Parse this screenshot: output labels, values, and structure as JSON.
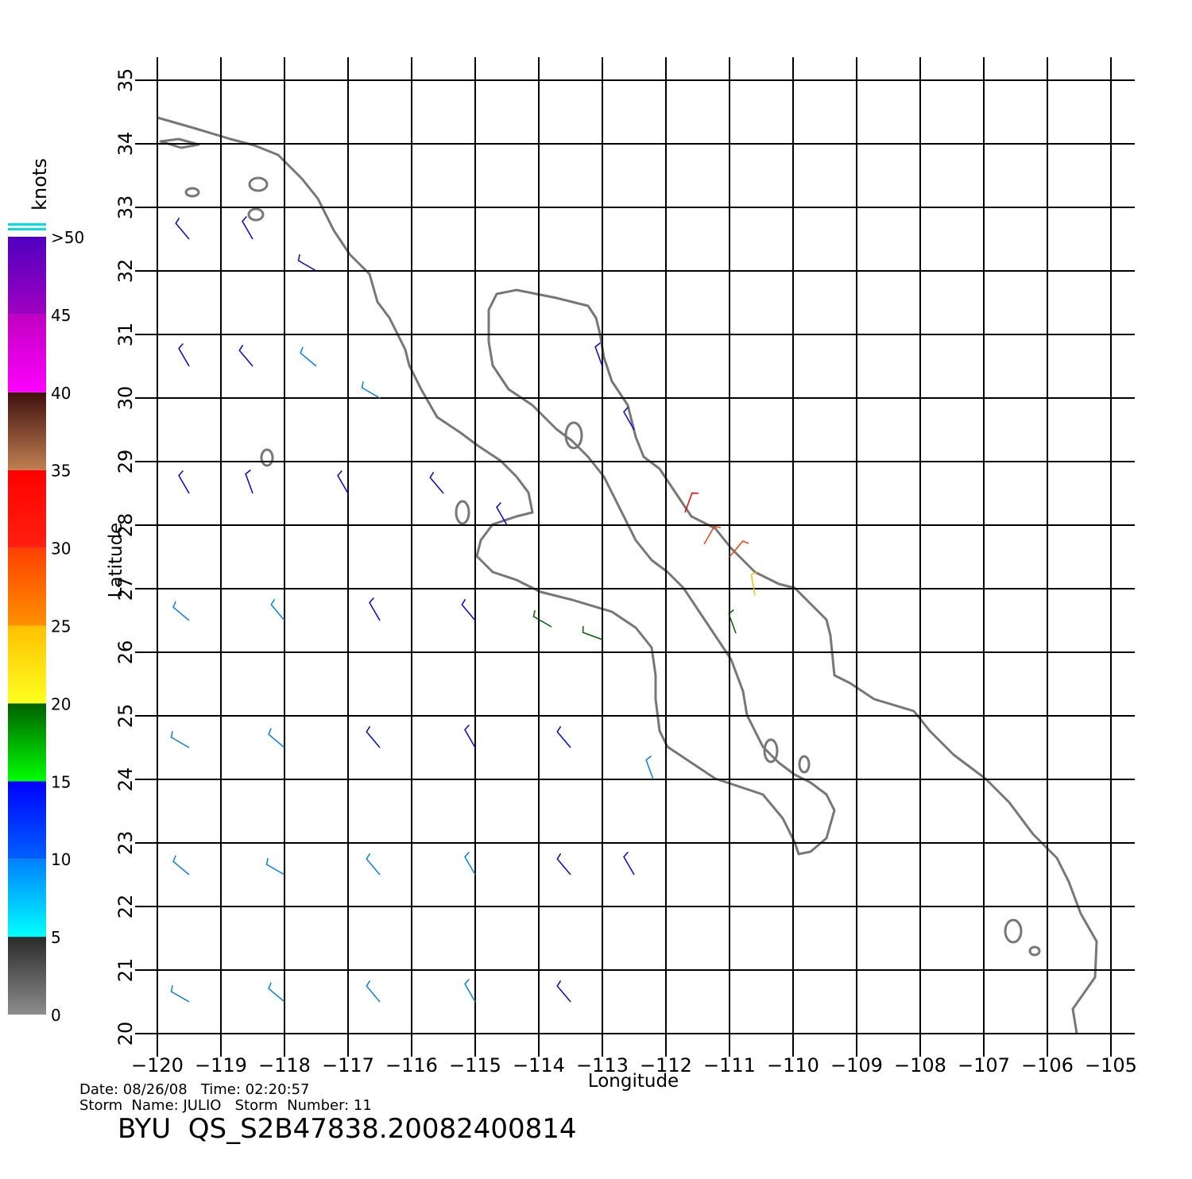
{
  "chart_data": {
    "type": "vector",
    "xlabel": "Longitude",
    "ylabel": "Latitude",
    "xlim": [
      -120,
      -105
    ],
    "ylim": [
      20,
      35
    ],
    "xticks": [
      {
        "value": -120,
        "label": "−120"
      },
      {
        "value": -119,
        "label": "−119"
      },
      {
        "value": -118,
        "label": "−118"
      },
      {
        "value": -117,
        "label": "−117"
      },
      {
        "value": -116,
        "label": "−116"
      },
      {
        "value": -115,
        "label": "−115"
      },
      {
        "value": -114,
        "label": "−114"
      },
      {
        "value": -113,
        "label": "−113"
      },
      {
        "value": -112,
        "label": "−112"
      },
      {
        "value": -111,
        "label": "−111"
      },
      {
        "value": -110,
        "label": "−110"
      },
      {
        "value": -109,
        "label": "−109"
      },
      {
        "value": -108,
        "label": "−108"
      },
      {
        "value": -107,
        "label": "−107"
      },
      {
        "value": -106,
        "label": "−106"
      },
      {
        "value": -105,
        "label": "−105"
      }
    ],
    "yticks": [
      20,
      21,
      22,
      23,
      24,
      25,
      26,
      27,
      28,
      29,
      30,
      31,
      32,
      33,
      34,
      35
    ],
    "grid": true,
    "colorbar": {
      "label": "knots",
      "ticks": [
        0,
        5,
        10,
        15,
        20,
        25,
        30,
        35,
        40,
        45,
        {
          "value": 50,
          "label": ">50"
        }
      ],
      "colors": [
        [
          "#8c8c8c",
          "#2a2a2a"
        ],
        [
          "#00ffff",
          "#0080ff"
        ],
        [
          "#0060ff",
          "#0000ff"
        ],
        [
          "#00ff00",
          "#006000"
        ],
        [
          "#ffff20",
          "#ffc000"
        ],
        [
          "#ff9000",
          "#ff4000"
        ],
        [
          "#ff2010",
          "#ff0000"
        ],
        [
          "#c08050",
          "#401010"
        ],
        [
          "#ff00ff",
          "#c000c0"
        ],
        [
          "#a000c0",
          "#5000c0"
        ]
      ]
    },
    "vectors": {
      "lon": [
        -119.5,
        -118.5,
        -117.5,
        -119.5,
        -118.5,
        -117.5,
        -116.5,
        -119.5,
        -118.5,
        -117,
        -115.5,
        -114.5,
        -119.5,
        -118,
        -116.5,
        -115,
        -113.8,
        -113,
        -119.5,
        -118,
        -116.5,
        -115,
        -113.5,
        -112.2,
        -119.5,
        -118,
        -116.5,
        -115,
        -113.5,
        -112.5,
        -119.5,
        -118,
        -116.5,
        -115,
        -113.5,
        -111.7,
        -111.4,
        -111,
        -110.6,
        -110.9,
        -113,
        -112.5
      ],
      "lat": [
        32.5,
        32.5,
        32,
        30.5,
        30.5,
        30.5,
        30,
        28.5,
        28.5,
        28.5,
        28.5,
        28,
        26.5,
        26.5,
        26.5,
        26.5,
        26.4,
        26.2,
        24.5,
        24.5,
        24.5,
        24.5,
        24.5,
        24,
        22.5,
        22.5,
        22.5,
        22.5,
        22.5,
        22.5,
        20.5,
        20.5,
        20.5,
        20.5,
        20.5,
        28.2,
        27.7,
        27.5,
        26.9,
        26.3,
        30.5,
        29.5
      ],
      "speed": [
        14,
        12,
        10,
        12,
        10,
        8,
        9,
        10,
        12,
        11,
        12,
        12,
        8,
        9,
        11,
        13,
        17,
        17,
        8,
        9,
        11,
        12,
        13,
        9,
        7,
        8,
        8,
        9,
        11,
        10,
        7,
        8,
        8,
        9,
        10,
        31,
        28,
        26,
        22,
        18,
        10,
        12
      ],
      "direction": [
        320,
        330,
        300,
        330,
        320,
        310,
        300,
        330,
        340,
        330,
        320,
        330,
        310,
        320,
        330,
        320,
        300,
        290,
        300,
        310,
        320,
        330,
        320,
        340,
        310,
        300,
        320,
        330,
        320,
        330,
        300,
        310,
        320,
        330,
        320,
        20,
        30,
        40,
        350,
        340,
        340,
        330
      ]
    },
    "annotations": [
      "Date: 08/26/08   Time: 02:20:57",
      "Storm  Name: JULIO   Storm  Number: 11",
      "BYU  QS_S2B47838.20082400814"
    ]
  }
}
